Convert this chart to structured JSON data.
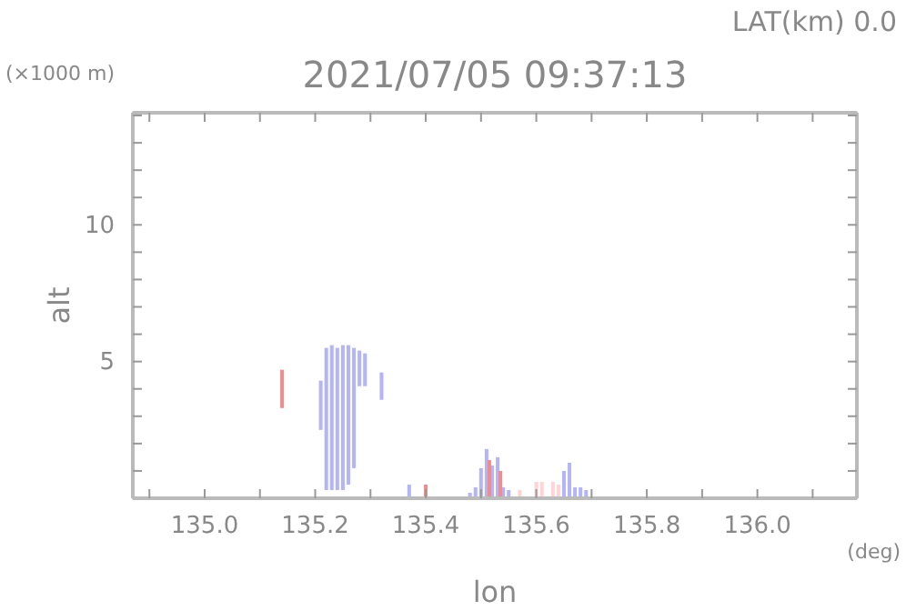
{
  "chart_data": {
    "type": "bar",
    "title": "2021/07/05 09:37:13",
    "xlabel": "lon",
    "ylabel": "alt",
    "annotations": [
      "LAT(km) 0.0",
      "(×1000 m)",
      "(deg)"
    ],
    "xlim": [
      134.87,
      136.18
    ],
    "ylim": [
      0,
      14.1
    ],
    "xticks": [
      {
        "value": 134.9,
        "label": null
      },
      {
        "value": 135.0,
        "label": "135.0"
      },
      {
        "value": 135.1,
        "label": null
      },
      {
        "value": 135.2,
        "label": "135.2"
      },
      {
        "value": 135.3,
        "label": null
      },
      {
        "value": 135.4,
        "label": "135.4"
      },
      {
        "value": 135.5,
        "label": null
      },
      {
        "value": 135.6,
        "label": "135.6"
      },
      {
        "value": 135.7,
        "label": null
      },
      {
        "value": 135.8,
        "label": "135.8"
      },
      {
        "value": 135.9,
        "label": null
      },
      {
        "value": 136.0,
        "label": "136.0"
      },
      {
        "value": 136.1,
        "label": null
      }
    ],
    "yticks": [
      {
        "value": 1,
        "label": null
      },
      {
        "value": 2,
        "label": null
      },
      {
        "value": 3,
        "label": null
      },
      {
        "value": 4,
        "label": null
      },
      5,
      {
        "value": 6,
        "label": null
      },
      {
        "value": 7,
        "label": null
      },
      {
        "value": 8,
        "label": null
      },
      {
        "value": 9,
        "label": null
      },
      10,
      {
        "value": 11,
        "label": null
      },
      {
        "value": 12,
        "label": null
      },
      {
        "value": 13,
        "label": null
      },
      {
        "value": 14,
        "label": null
      }
    ],
    "grid": false,
    "series": [
      {
        "color": "#b4b4f8",
        "x": [
          135.21,
          135.22,
          135.23,
          135.24,
          135.25,
          135.26,
          135.27,
          135.28,
          135.29,
          135.32,
          135.37,
          135.48,
          135.49,
          135.5,
          135.51,
          135.52,
          135.53,
          135.54,
          135.55,
          135.65,
          135.66,
          135.67,
          135.68,
          135.69
        ],
        "base": [
          2.5,
          0.3,
          0.3,
          0.3,
          0.3,
          0.5,
          1.1,
          4.1,
          4.1,
          3.6,
          0,
          0,
          0,
          0,
          0,
          0,
          0,
          0,
          0,
          0,
          0,
          0,
          0,
          0
        ],
        "values": [
          1.8,
          5.2,
          5.3,
          5.2,
          5.3,
          5.1,
          4.4,
          1.3,
          1.2,
          1.0,
          0.5,
          0.2,
          0.4,
          1.1,
          1.8,
          1.2,
          1.5,
          0.4,
          0.3,
          1.0,
          1.3,
          0.4,
          0.4,
          0.3
        ]
      },
      {
        "color": "#f08c8c",
        "x": [
          135.14,
          135.4,
          135.515,
          135.535
        ],
        "base": [
          3.3,
          0,
          0,
          0
        ],
        "values": [
          1.4,
          0.5,
          1.4,
          1.0
        ]
      },
      {
        "color": "#ffd4d4",
        "x": [
          135.57,
          135.6,
          135.61,
          135.63,
          135.64
        ],
        "base": [
          0,
          0,
          0,
          0,
          0
        ],
        "values": [
          0.3,
          0.6,
          0.6,
          0.6,
          0.5
        ]
      }
    ]
  }
}
